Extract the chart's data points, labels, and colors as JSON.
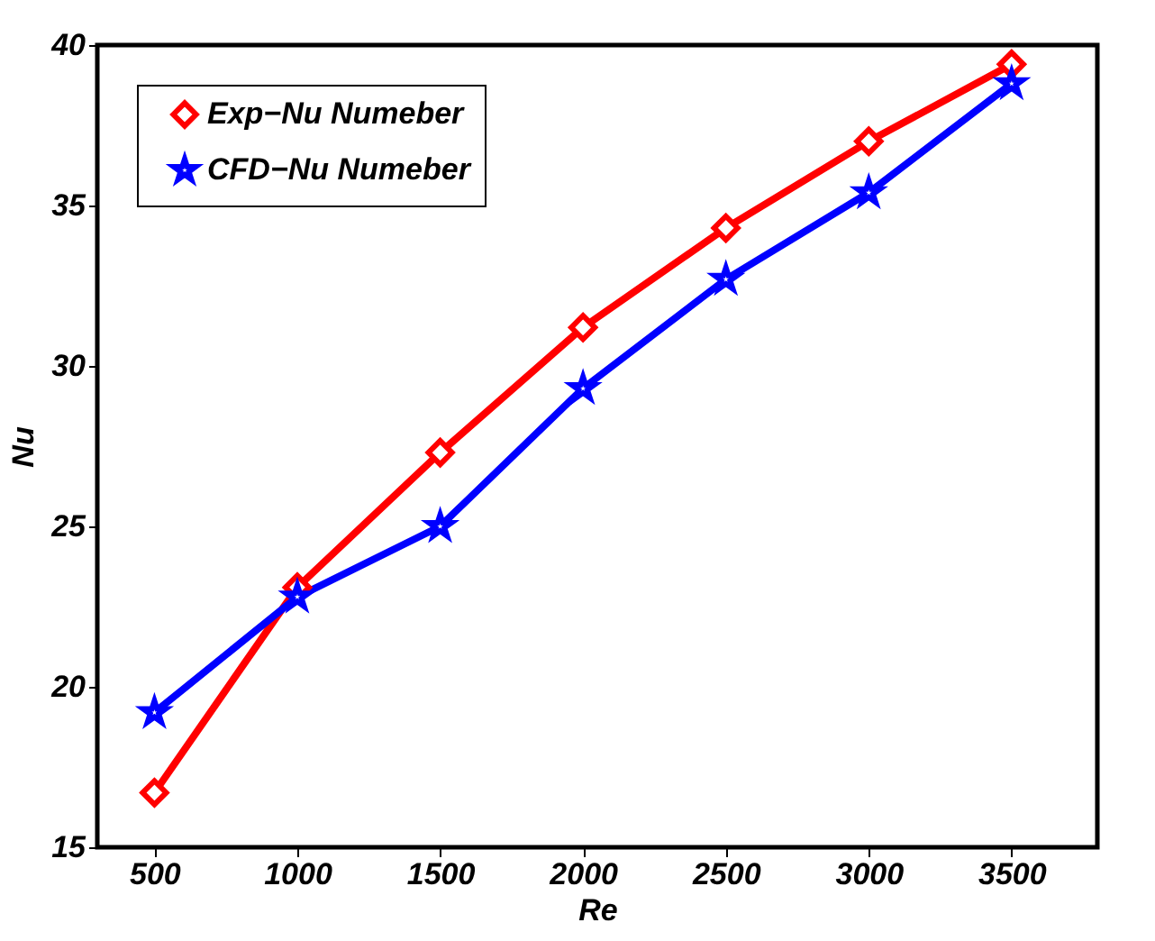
{
  "chart_data": {
    "type": "line",
    "xlabel": "Re",
    "ylabel": "Nu",
    "x": [
      500,
      1000,
      1500,
      2000,
      2500,
      3000,
      3500
    ],
    "series": [
      {
        "name": "Exp−Nu Numeber",
        "color": "#ff0000",
        "marker": "diamond",
        "values": [
          16.7,
          23.1,
          27.3,
          31.2,
          34.3,
          37.0,
          39.4
        ]
      },
      {
        "name": "CFD−Nu Numeber",
        "color": "#0000ff",
        "marker": "star",
        "values": [
          19.2,
          22.8,
          25.0,
          29.3,
          32.7,
          35.4,
          38.8
        ]
      }
    ],
    "xlim": [
      300,
      3800
    ],
    "xticks": [
      500,
      1000,
      1500,
      2000,
      2500,
      3000,
      3500
    ],
    "ylim": [
      15,
      40
    ],
    "yticks": [
      15,
      20,
      25,
      30,
      35,
      40
    ],
    "grid": false,
    "legend": "top left",
    "line_style": "solid"
  }
}
